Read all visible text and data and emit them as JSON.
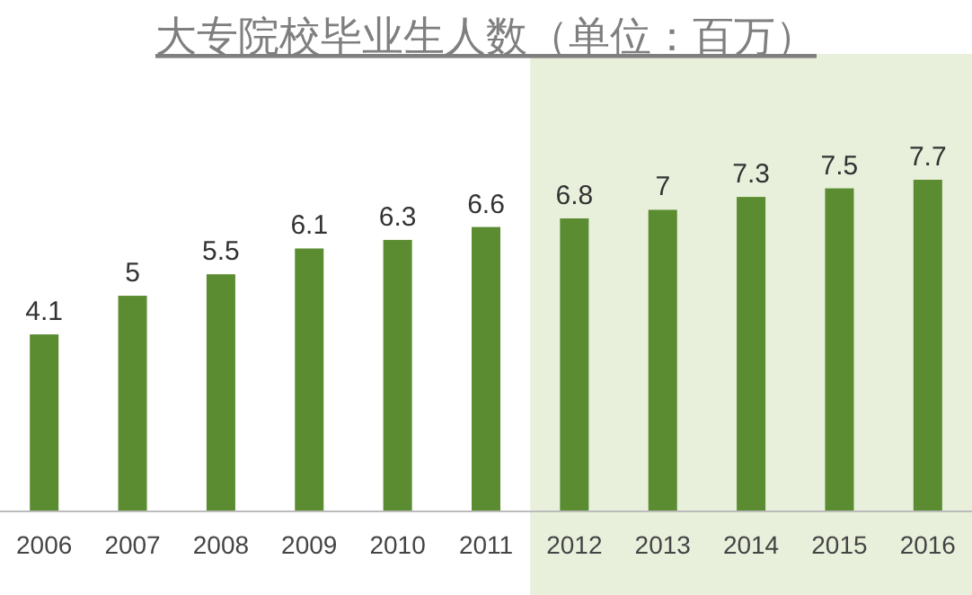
{
  "chart_data": {
    "type": "bar",
    "title": "大专院校毕业生人数（单位：百万）",
    "categories": [
      "2006",
      "2007",
      "2008",
      "2009",
      "2010",
      "2011",
      "2012",
      "2013",
      "2014",
      "2015",
      "2016"
    ],
    "values": [
      4.1,
      5,
      5.5,
      6.1,
      6.3,
      6.6,
      6.8,
      7,
      7.3,
      7.5,
      7.7
    ],
    "color": "#5b8c32",
    "data_labels": true,
    "bands": [
      {
        "axis": "x",
        "from": "2012",
        "to": "2016",
        "color": "#e8f0dc"
      }
    ]
  }
}
